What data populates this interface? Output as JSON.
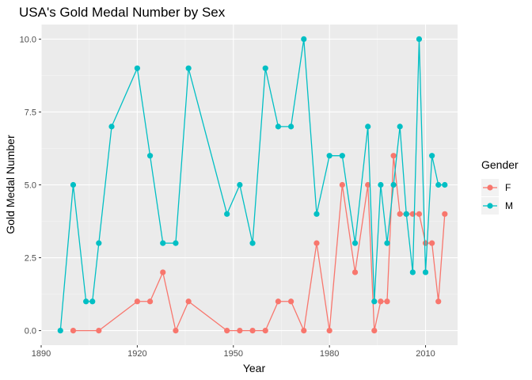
{
  "chart_data": {
    "type": "line",
    "title": "USA's Gold Medal Number by Sex",
    "xlabel": "Year",
    "ylabel": "Gold Medal Number",
    "xlim": [
      1890,
      2020
    ],
    "ylim": [
      -0.5,
      10.5
    ],
    "x_ticks": [
      1890,
      1920,
      1950,
      1980,
      2010
    ],
    "x_tick_labels": [
      "1890",
      "1920",
      "1950",
      "1980",
      "2010"
    ],
    "y_ticks": [
      0,
      2.5,
      5,
      7.5,
      10
    ],
    "y_tick_labels": [
      "0.0",
      "2.5",
      "5.0",
      "7.5",
      "10.0"
    ],
    "grid": true,
    "legend": {
      "title": "Gender",
      "placement": "right"
    },
    "series": [
      {
        "name": "F",
        "color": "#F8766D",
        "points": [
          [
            1900,
            0
          ],
          [
            1908,
            0
          ],
          [
            1920,
            1
          ],
          [
            1924,
            1
          ],
          [
            1928,
            2
          ],
          [
            1932,
            0
          ],
          [
            1936,
            1
          ],
          [
            1948,
            0
          ],
          [
            1952,
            0
          ],
          [
            1956,
            0
          ],
          [
            1960,
            0
          ],
          [
            1964,
            1
          ],
          [
            1968,
            1
          ],
          [
            1972,
            0
          ],
          [
            1976,
            3
          ],
          [
            1980,
            0
          ],
          [
            1984,
            5
          ],
          [
            1988,
            2
          ],
          [
            1992,
            5
          ],
          [
            1994,
            0
          ],
          [
            1996,
            1
          ],
          [
            1998,
            1
          ],
          [
            2000,
            6
          ],
          [
            2002,
            4
          ],
          [
            2004,
            4
          ],
          [
            2006,
            4
          ],
          [
            2008,
            4
          ],
          [
            2010,
            3
          ],
          [
            2012,
            3
          ],
          [
            2014,
            1
          ],
          [
            2016,
            4
          ]
        ]
      },
      {
        "name": "M",
        "color": "#00BFC4",
        "points": [
          [
            1896,
            0
          ],
          [
            1900,
            5
          ],
          [
            1904,
            1
          ],
          [
            1906,
            1
          ],
          [
            1908,
            3
          ],
          [
            1912,
            7
          ],
          [
            1920,
            9
          ],
          [
            1924,
            6
          ],
          [
            1928,
            3
          ],
          [
            1932,
            3
          ],
          [
            1936,
            9
          ],
          [
            1948,
            4
          ],
          [
            1952,
            5
          ],
          [
            1956,
            3
          ],
          [
            1960,
            9
          ],
          [
            1964,
            7
          ],
          [
            1968,
            7
          ],
          [
            1972,
            10
          ],
          [
            1976,
            4
          ],
          [
            1980,
            6
          ],
          [
            1984,
            6
          ],
          [
            1988,
            3
          ],
          [
            1992,
            7
          ],
          [
            1994,
            1
          ],
          [
            1996,
            5
          ],
          [
            1998,
            3
          ],
          [
            2000,
            5
          ],
          [
            2002,
            7
          ],
          [
            2004,
            4
          ],
          [
            2006,
            2
          ],
          [
            2008,
            10
          ],
          [
            2010,
            2
          ],
          [
            2012,
            6
          ],
          [
            2014,
            5
          ],
          [
            2016,
            5
          ]
        ]
      }
    ]
  }
}
